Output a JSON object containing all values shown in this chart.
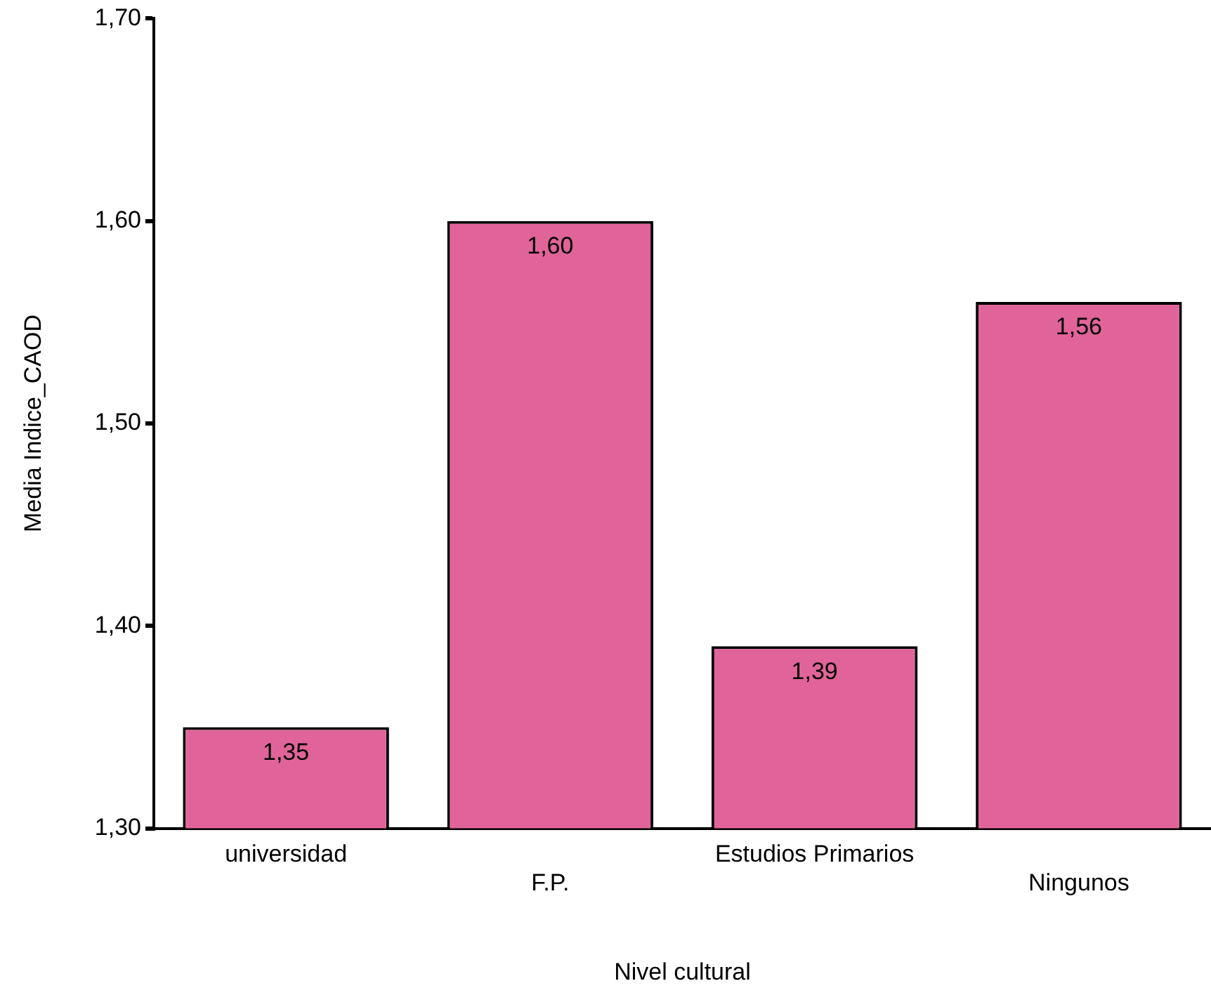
{
  "chart_data": {
    "type": "bar",
    "xlabel": "Nivel cultural",
    "ylabel": "Media Indice_CAOD",
    "categories": [
      "universidad",
      "F.P.",
      "Estudios Primarios",
      "Ningunos"
    ],
    "values": [
      1.35,
      1.6,
      1.39,
      1.56
    ],
    "value_labels": [
      "1,35",
      "1,60",
      "1,39",
      "1,56"
    ],
    "color": "#e0649a",
    "ylim": [
      1.3,
      1.7
    ],
    "yticks": [
      {
        "value": 1.3,
        "label": "1,30"
      },
      {
        "value": 1.4,
        "label": "1,40"
      },
      {
        "value": 1.5,
        "label": "1,50"
      },
      {
        "value": 1.6,
        "label": "1,60"
      },
      {
        "value": 1.7,
        "label": "1,70"
      }
    ],
    "grid": false,
    "legend": false
  }
}
